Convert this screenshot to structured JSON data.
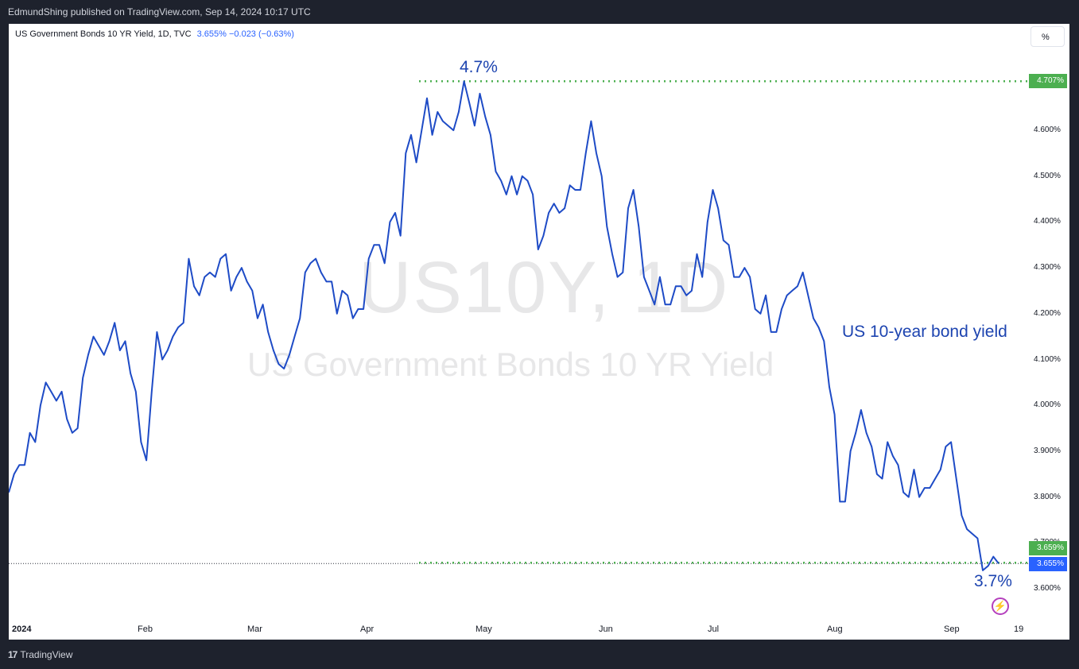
{
  "header": {
    "published": "EdmundShing published on TradingView.com, Sep 14, 2024 10:17 UTC"
  },
  "legend": {
    "symbol": "US Government Bonds 10 YR Yield, 1D, TVC",
    "values": "3.655% −0.023 (−0.63%)"
  },
  "toolbar": {
    "percent_button": "%"
  },
  "watermark": {
    "ticker": "US10Y, 1D",
    "name": "US Government Bonds 10 YR Yield"
  },
  "annotations": {
    "high_label": "4.7%",
    "low_label": "3.7%",
    "series_label": "US 10-year bond yield"
  },
  "price_tags": {
    "high": "4.707%",
    "low_line": "3.659%",
    "last": "3.655%"
  },
  "footer": {
    "brand": "TradingView"
  },
  "colors": {
    "line": "#1e4bc6",
    "high_tag": "#4caf50",
    "last_tag": "#2962ff",
    "annotation": "#1d44b0"
  },
  "chart_data": {
    "type": "line",
    "series": [
      {
        "values": [
          3.81,
          3.85,
          3.87,
          3.87,
          3.94,
          3.92,
          4.0,
          4.05,
          4.03,
          4.01,
          4.03,
          3.97,
          3.94,
          3.95,
          4.06,
          4.11,
          4.15,
          4.13,
          4.11,
          4.14,
          4.18,
          4.12,
          4.14,
          4.07,
          4.03,
          3.92,
          3.88,
          4.03,
          4.16,
          4.1,
          4.12,
          4.15,
          4.17,
          4.18,
          4.32,
          4.26,
          4.24,
          4.28,
          4.29,
          4.28,
          4.32,
          4.33,
          4.25,
          4.28,
          4.3,
          4.27,
          4.25,
          4.19,
          4.22,
          4.16,
          4.12,
          4.09,
          4.08,
          4.11,
          4.15,
          4.19,
          4.29,
          4.31,
          4.32,
          4.29,
          4.27,
          4.27,
          4.2,
          4.25,
          4.24,
          4.19,
          4.21,
          4.21,
          4.32,
          4.35,
          4.35,
          4.31,
          4.4,
          4.42,
          4.37,
          4.55,
          4.59,
          4.53,
          4.6,
          4.67,
          4.59,
          4.64,
          4.62,
          4.61,
          4.6,
          4.64,
          4.707,
          4.66,
          4.61,
          4.68,
          4.63,
          4.59,
          4.51,
          4.49,
          4.46,
          4.5,
          4.46,
          4.5,
          4.49,
          4.46,
          4.34,
          4.37,
          4.42,
          4.44,
          4.42,
          4.43,
          4.48,
          4.47,
          4.47,
          4.55,
          4.62,
          4.55,
          4.5,
          4.39,
          4.33,
          4.28,
          4.29,
          4.43,
          4.47,
          4.39,
          4.28,
          4.25,
          4.22,
          4.28,
          4.22,
          4.22,
          4.26,
          4.26,
          4.24,
          4.25,
          4.33,
          4.28,
          4.4,
          4.47,
          4.43,
          4.36,
          4.35,
          4.28,
          4.28,
          4.3,
          4.28,
          4.21,
          4.2,
          4.24,
          4.16,
          4.16,
          4.21,
          4.24,
          4.25,
          4.26,
          4.29,
          4.24,
          4.19,
          4.17,
          4.14,
          4.04,
          3.98,
          3.79,
          3.79,
          3.9,
          3.94,
          3.99,
          3.94,
          3.91,
          3.85,
          3.84,
          3.92,
          3.89,
          3.87,
          3.81,
          3.8,
          3.86,
          3.8,
          3.82,
          3.82,
          3.84,
          3.86,
          3.91,
          3.92,
          3.84,
          3.76,
          3.73,
          3.72,
          3.71,
          3.64,
          3.65,
          3.67,
          3.655
        ]
      }
    ],
    "x_labels": [
      "2024",
      "Feb",
      "Mar",
      "Apr",
      "May",
      "Jun",
      "Jul",
      "Aug",
      "Sep",
      "19"
    ],
    "y_ticks": [
      "3.600%",
      "3.700%",
      "3.800%",
      "3.900%",
      "4.000%",
      "4.100%",
      "4.200%",
      "4.300%",
      "4.400%",
      "4.500%",
      "4.600%"
    ],
    "ylim": [
      3.54,
      4.79
    ],
    "reference_lines": [
      4.707,
      3.655
    ],
    "y_scale": "linear",
    "grid": false,
    "legend_position": "top-left"
  }
}
